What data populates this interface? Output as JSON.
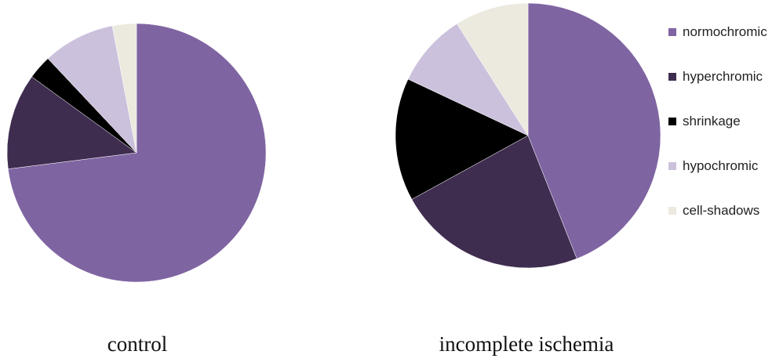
{
  "chart_data": [
    {
      "type": "pie",
      "title": "control",
      "categories": [
        "normochromic",
        "hyperchromic",
        "shrinkage",
        "hypochromic",
        "cell-shadows"
      ],
      "values": [
        73,
        12,
        3,
        9,
        3
      ]
    },
    {
      "type": "pie",
      "title": "incomplete ischemia",
      "categories": [
        "normochromic",
        "hyperchromic",
        "shrinkage",
        "hypochromic",
        "cell-shadows"
      ],
      "values": [
        44,
        23,
        15,
        9,
        9
      ]
    }
  ],
  "legend": {
    "placement": "right",
    "items": [
      {
        "label": "normochromic",
        "color": "#7f64a2"
      },
      {
        "label": "hyperchromic",
        "color": "#3f2d50"
      },
      {
        "label": "shrinkage",
        "color": "#000000"
      },
      {
        "label": "hypochromic",
        "color": "#ccc1dc"
      },
      {
        "label": "cell-shadows",
        "color": "#ece9df"
      }
    ]
  },
  "colors": {
    "normochromic": "#7f64a2",
    "hyperchromic": "#3f2d50",
    "shrinkage": "#000000",
    "hypochromic": "#ccc1dc",
    "cell-shadows": "#ece9df"
  }
}
